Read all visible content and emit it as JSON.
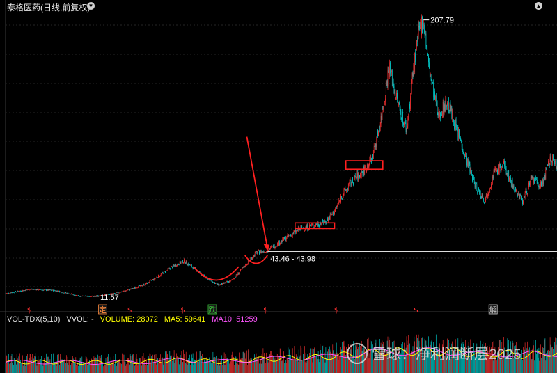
{
  "header": {
    "title": "泰格医药(日线,前复权)",
    "dropdown_icon": "chevron-down-icon",
    "top_right_icon": "collapse-icon"
  },
  "chart_data": {
    "type": "candlestick",
    "panels": [
      {
        "name": "price",
        "ylim": [
          5,
          215
        ],
        "x_index_range": [
          0,
          880
        ],
        "grid": "horizontal",
        "colors": {
          "up": "#ff3333",
          "down": "#00d2d2"
        },
        "close_anchors": [
          [
            0,
            14
          ],
          [
            40,
            17
          ],
          [
            80,
            16
          ],
          [
            120,
            12
          ],
          [
            140,
            12
          ],
          [
            175,
            14
          ],
          [
            200,
            17
          ],
          [
            225,
            21
          ],
          [
            250,
            28
          ],
          [
            270,
            34
          ],
          [
            285,
            37
          ],
          [
            300,
            32
          ],
          [
            320,
            25
          ],
          [
            340,
            20
          ],
          [
            360,
            23
          ],
          [
            375,
            30
          ],
          [
            390,
            38
          ],
          [
            400,
            43
          ],
          [
            415,
            44
          ],
          [
            430,
            48
          ],
          [
            450,
            54
          ],
          [
            470,
            60
          ],
          [
            490,
            62
          ],
          [
            510,
            65
          ],
          [
            525,
            72
          ],
          [
            535,
            82
          ],
          [
            550,
            92
          ],
          [
            570,
            100
          ],
          [
            585,
            110
          ],
          [
            600,
            140
          ],
          [
            612,
            175
          ],
          [
            625,
            150
          ],
          [
            640,
            130
          ],
          [
            650,
            170
          ],
          [
            660,
            200
          ],
          [
            667,
            207.79
          ],
          [
            675,
            175
          ],
          [
            690,
            140
          ],
          [
            705,
            150
          ],
          [
            720,
            130
          ],
          [
            735,
            110
          ],
          [
            750,
            90
          ],
          [
            765,
            80
          ],
          [
            780,
            100
          ],
          [
            795,
            105
          ],
          [
            810,
            90
          ],
          [
            825,
            80
          ],
          [
            840,
            95
          ],
          [
            855,
            90
          ],
          [
            870,
            110
          ],
          [
            880,
            105
          ]
        ],
        "annotations": {
          "high": "207.79",
          "low": "11.57",
          "range_label": "43.46 - 43.98",
          "range_level": 43.72,
          "boxes": [
            {
              "x": [
                462,
                525
              ],
              "y": [
                60,
                64
              ]
            },
            {
              "x": [
                543,
                602
              ],
              "y": [
                102,
                108
              ]
            }
          ],
          "cup_arcs": [
            {
              "x": [
                300,
                372
              ],
              "y_top": 33,
              "y_bottom": 23
            },
            {
              "x": [
                382,
                418
              ],
              "y_top": 41,
              "y_bottom": 35
            }
          ],
          "arrow": {
            "from": [
              385,
              125
            ],
            "to": [
              418,
              44
            ]
          }
        },
        "markers": [
          {
            "index": 38,
            "label": "$",
            "color": "#ff3030"
          },
          {
            "index": 155,
            "label": "定",
            "color": "#ff8a3d",
            "boxed": true
          },
          {
            "index": 198,
            "label": "$",
            "color": "#ff3030"
          },
          {
            "index": 283,
            "label": "$",
            "color": "#ff3030"
          },
          {
            "index": 330,
            "label": "跌",
            "color": "#3cd23c",
            "boxed": true
          },
          {
            "index": 415,
            "label": "$",
            "color": "#ff3030"
          },
          {
            "index": 528,
            "label": "$",
            "color": "#ff3030"
          },
          {
            "index": 655,
            "label": "$",
            "color": "#ff3030"
          },
          {
            "index": 778,
            "label": "解",
            "color": "#cfcfcf",
            "boxed": true
          }
        ]
      },
      {
        "name": "volume",
        "indicator": "VOL-TDX(5,10)",
        "legend": [
          {
            "text": "VOL-TDX(5,10)",
            "color": "#e6e6e6"
          },
          {
            "text": "VVOL: -",
            "color": "#e6e6e6"
          },
          {
            "text": "VOLUME: 28072",
            "color": "#e6e6e6"
          },
          {
            "text": "MA5: 59641",
            "color": "#ffff00"
          },
          {
            "text": "MA10: 51259",
            "color": "#ff55ff"
          }
        ]
      }
    ]
  },
  "watermark": {
    "text": "雪球：净利润断层2025",
    "icon": "snowball-logo-icon"
  }
}
